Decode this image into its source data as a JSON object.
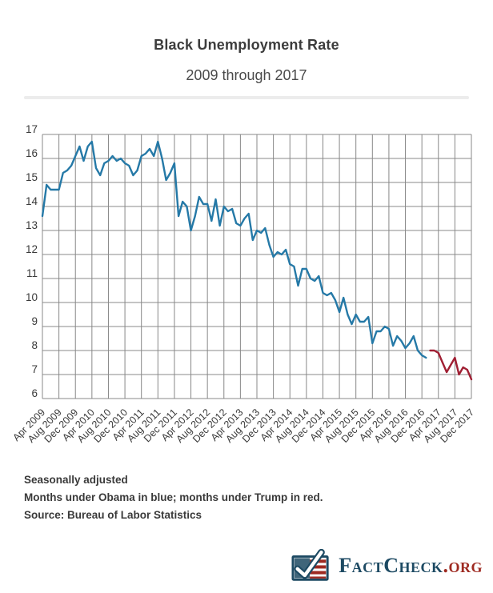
{
  "header": {
    "title": "Black Unemployment Rate",
    "subtitle": "2009 through 2017"
  },
  "notes": {
    "line1": "Seasonally adjusted",
    "line2": "Months under Obama in blue; months under Trump in red.",
    "line3": "Source: Bureau of Labor Statistics"
  },
  "logo": {
    "name_part1": "Fact",
    "name_part2": "Check",
    "suffix": ".org",
    "icon": "flag-check-icon",
    "navy": "#1d4a63",
    "red": "#9e2a21"
  },
  "chart_data": {
    "type": "line",
    "title": "Black Unemployment Rate",
    "subtitle": "2009 through 2017",
    "xlabel": "",
    "ylabel": "",
    "ylim": [
      6,
      17
    ],
    "y_ticks": [
      17,
      16,
      15,
      14,
      13,
      12,
      11,
      10,
      9,
      8,
      7,
      6
    ],
    "grid": true,
    "x_unit": "month",
    "x_range": "Apr 2009 through Dec 2017, monthly",
    "x_ticks": [
      {
        "label": "Apr 2009",
        "index": 0
      },
      {
        "label": "Aug 2009",
        "index": 4
      },
      {
        "label": "Dec 2009",
        "index": 8
      },
      {
        "label": "Apr 2010",
        "index": 12
      },
      {
        "label": "Aug 2010",
        "index": 16
      },
      {
        "label": "Dec 2010",
        "index": 20
      },
      {
        "label": "Apr 2011",
        "index": 24
      },
      {
        "label": "Aug 2011",
        "index": 28
      },
      {
        "label": "Dec 2011",
        "index": 32
      },
      {
        "label": "Apr 2012",
        "index": 36
      },
      {
        "label": "Aug 2012",
        "index": 40
      },
      {
        "label": "Dec 2012",
        "index": 44
      },
      {
        "label": "Apr 2013",
        "index": 48
      },
      {
        "label": "Aug 2013",
        "index": 52
      },
      {
        "label": "Dec 2013",
        "index": 56
      },
      {
        "label": "Apr 2014",
        "index": 60
      },
      {
        "label": "Aug 2014",
        "index": 64
      },
      {
        "label": "Dec 2014",
        "index": 68
      },
      {
        "label": "Apr 2015",
        "index": 72
      },
      {
        "label": "Aug 2015",
        "index": 76
      },
      {
        "label": "Dec 2015",
        "index": 80
      },
      {
        "label": "Apr 2016",
        "index": 84
      },
      {
        "label": "Aug 2016",
        "index": 88
      },
      {
        "label": "Dec 2016",
        "index": 92
      },
      {
        "label": "Apr 2017",
        "index": 96
      },
      {
        "label": "Aug 2017",
        "index": 100
      },
      {
        "label": "Dec 2017",
        "index": 104
      }
    ],
    "series": [
      {
        "key": "obama",
        "name": "Months under Obama",
        "color": "#2579a7",
        "start_month": "Apr 2009",
        "end_month": "Jan 2017",
        "start_index": 0,
        "values": [
          13.6,
          14.9,
          14.7,
          14.7,
          14.7,
          15.4,
          15.5,
          15.7,
          16.1,
          16.5,
          15.9,
          16.5,
          16.7,
          15.6,
          15.3,
          15.8,
          15.9,
          16.1,
          15.9,
          16.0,
          15.8,
          15.7,
          15.3,
          15.5,
          16.1,
          16.2,
          16.4,
          16.1,
          16.7,
          16.0,
          15.1,
          15.4,
          15.8,
          13.6,
          14.2,
          14.0,
          13.0,
          13.6,
          14.4,
          14.1,
          14.1,
          13.4,
          14.3,
          13.2,
          14.0,
          13.8,
          13.9,
          13.3,
          13.2,
          13.5,
          13.7,
          12.6,
          13.0,
          12.9,
          13.1,
          12.4,
          11.9,
          12.1,
          12.0,
          12.2,
          11.6,
          11.5,
          10.7,
          11.4,
          11.4,
          11.0,
          10.9,
          11.1,
          10.4,
          10.3,
          10.4,
          10.1,
          9.6,
          10.2,
          9.5,
          9.1,
          9.5,
          9.2,
          9.2,
          9.4,
          8.3,
          8.8,
          8.8,
          9.0,
          8.9,
          8.2,
          8.6,
          8.4,
          8.1,
          8.3,
          8.6,
          8.0,
          7.8,
          7.7
        ]
      },
      {
        "key": "trump",
        "name": "Months under Trump",
        "color": "#a01f33",
        "start_month": "Feb 2017",
        "end_month": "Dec 2017",
        "start_index": 94,
        "values": [
          8.0,
          8.0,
          7.9,
          7.5,
          7.1,
          7.4,
          7.7,
          7.0,
          7.3,
          7.2,
          6.8
        ]
      }
    ]
  }
}
